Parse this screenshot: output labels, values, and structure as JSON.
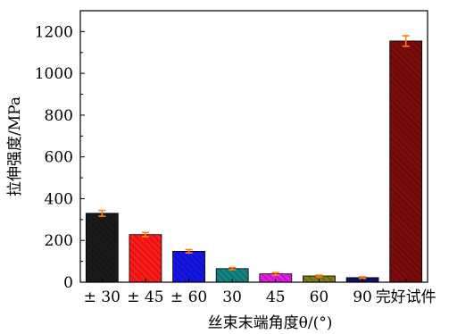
{
  "chart_data": {
    "type": "bar",
    "title": "",
    "xlabel": "丝束末端角度θ/(°)",
    "ylabel": "拉伸强度/MPa",
    "ylim": [
      0,
      1300
    ],
    "yticks": [
      0,
      200,
      400,
      600,
      800,
      1000,
      1200
    ],
    "grid": false,
    "categories": [
      "± 30",
      "± 45",
      "± 60",
      "30",
      "45",
      "60",
      "90",
      "完好试件"
    ],
    "values": [
      330,
      228,
      148,
      65,
      40,
      30,
      22,
      1155
    ],
    "errors": [
      14,
      10,
      8,
      5,
      6,
      4,
      4,
      25
    ],
    "colors": [
      "#1a1a1a",
      "#ff1a1a",
      "#1515e6",
      "#138383",
      "#e619e6",
      "#7d7d14",
      "#10106e",
      "#7a0c0c"
    ],
    "error_bar_color": "#ff7f0e",
    "bar_pattern": "diagonal-hatch"
  }
}
